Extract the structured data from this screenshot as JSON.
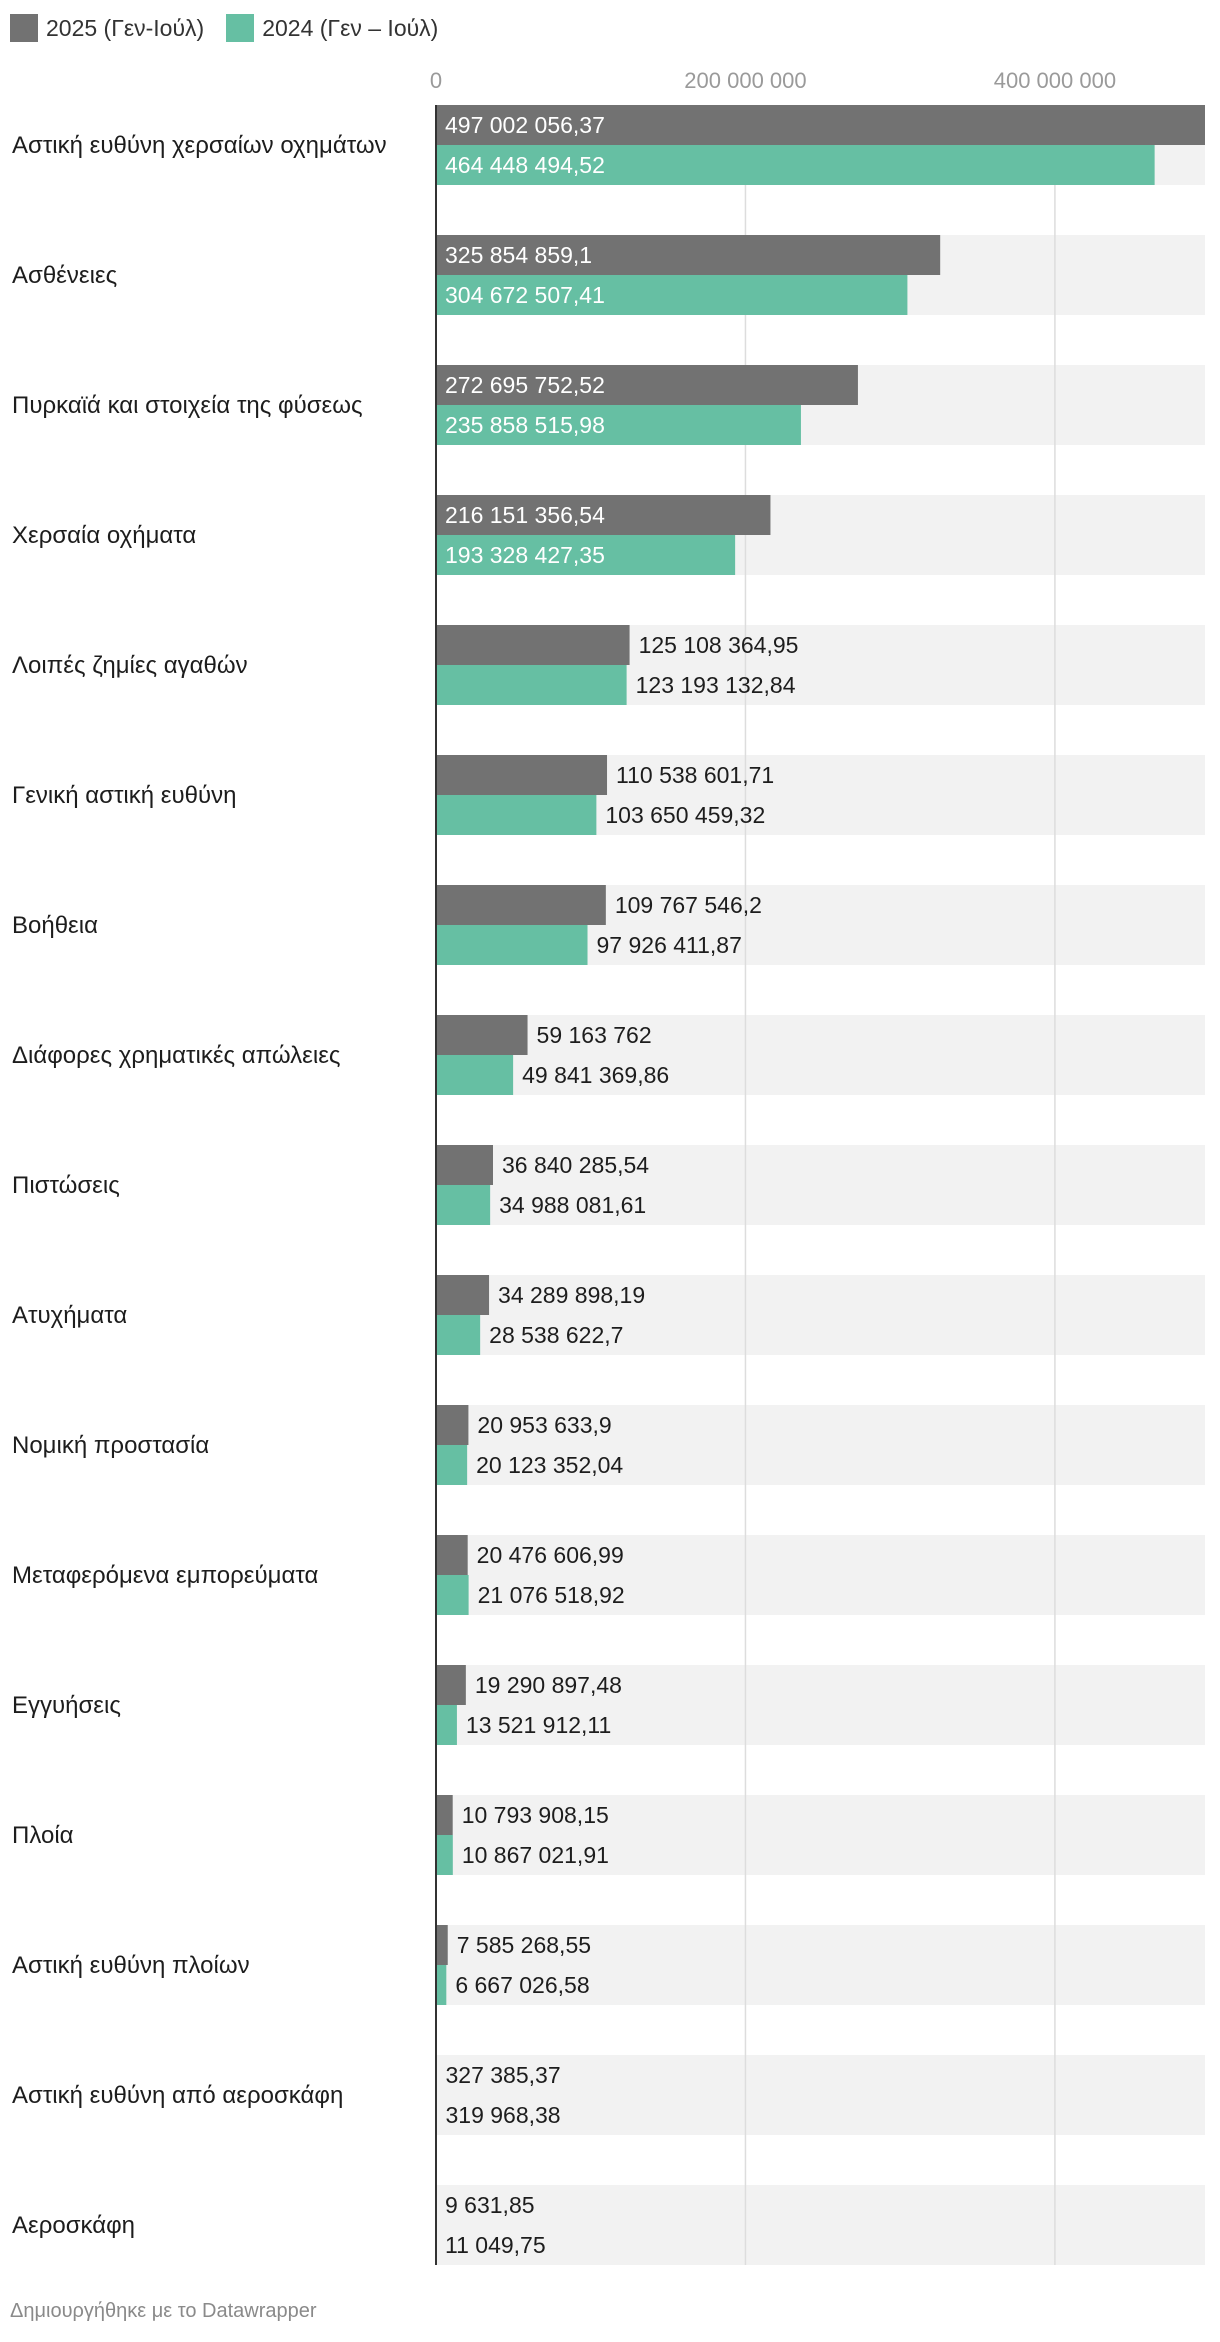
{
  "legend": {
    "items": [
      {
        "label": "2025 (Γεν-Ιούλ)",
        "color": "#727272"
      },
      {
        "label": "2024 (Γεν – Ιούλ)",
        "color": "#66bfa3"
      }
    ]
  },
  "footer": {
    "credit": "Δημιουργήθηκε με το Datawrapper"
  },
  "chart_data": {
    "type": "bar",
    "orientation": "horizontal",
    "grouped": true,
    "title": "",
    "xlabel": "",
    "ylabel": "",
    "xlim": [
      0,
      497002056.37
    ],
    "ticks": [
      {
        "value": 0,
        "label": "0"
      },
      {
        "value": 200000000,
        "label": "200 000 000"
      },
      {
        "value": 400000000,
        "label": "400 000 000"
      }
    ],
    "grid": true,
    "legend_position": "top-left",
    "colors": {
      "s2025": "#727272",
      "s2024": "#66bfa3",
      "row_bg": "#f2f2f2",
      "grid": "#dddddd",
      "axis": "#333333"
    },
    "categories": [
      "Αστική ευθύνη χερσαίων οχημάτων",
      "Ασθένειες",
      "Πυρκαϊά και στοιχεία της φύσεως",
      "Χερσαία οχήματα",
      "Λοιπές ζημίες αγαθών",
      "Γενική αστική ευθύνη",
      "Βοήθεια",
      "Διάφορες χρηματικές απώλειες",
      "Πιστώσεις",
      "Ατυχήματα",
      "Νομική προστασία",
      "Μεταφερόμενα εμπορεύματα",
      "Εγγυήσεις",
      "Πλοία",
      "Αστική ευθύνη πλοίων",
      "Αστική ευθύνη από αεροσκάφη",
      "Αεροσκάφη"
    ],
    "series": [
      {
        "name": "2025 (Γεν-Ιούλ)",
        "values": [
          497002056.37,
          325854859.1,
          272695752.52,
          216151356.54,
          125108364.95,
          110538601.71,
          109767546.2,
          59163762,
          36840285.54,
          34289898.19,
          20953633.9,
          20476606.99,
          19290897.48,
          10793908.15,
          7585268.55,
          327385.37,
          9631.85
        ],
        "labels": [
          "497 002 056,37",
          "325 854 859,1",
          "272 695 752,52",
          "216 151 356,54",
          "125 108 364,95",
          "110 538 601,71",
          "109 767 546,2",
          "59 163 762",
          "36 840 285,54",
          "34 289 898,19",
          "20 953 633,9",
          "20 476 606,99",
          "19 290 897,48",
          "10 793 908,15",
          "7 585 268,55",
          "327 385,37",
          "9 631,85"
        ]
      },
      {
        "name": "2024 (Γεν – Ιούλ)",
        "values": [
          464448494.52,
          304672507.41,
          235858515.98,
          193328427.35,
          123193132.84,
          103650459.32,
          97926411.87,
          49841369.86,
          34988081.61,
          28538622.7,
          20123352.04,
          21076518.92,
          13521912.11,
          10867021.91,
          6667026.58,
          319968.38,
          11049.75
        ],
        "labels": [
          "464 448 494,52",
          "304 672 507,41",
          "235 858 515,98",
          "193 328 427,35",
          "123 193 132,84",
          "103 650 459,32",
          "97 926 411,87",
          "49 841 369,86",
          "34 988 081,61",
          "28 538 622,7",
          "20 123 352,04",
          "21 076 518,92",
          "13 521 912,11",
          "10 867 021,91",
          "6 667 026,58",
          "319 968,38",
          "11 049,75"
        ]
      }
    ]
  }
}
